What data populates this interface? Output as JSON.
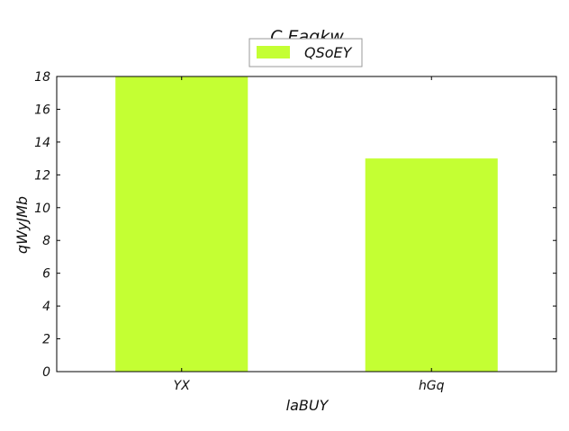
{
  "chart_data": {
    "type": "bar",
    "title": "C Eaqkw",
    "xlabel": "laBUY",
    "ylabel": "qWyJMb",
    "categories": [
      "YX",
      "hGq"
    ],
    "series": [
      {
        "name": "QSoEY",
        "values": [
          18,
          13
        ]
      }
    ],
    "ylim": [
      0,
      18
    ],
    "yticks": [
      0,
      2,
      4,
      6,
      8,
      10,
      12,
      14,
      16,
      18
    ],
    "grid": false,
    "legend_position": "top-center",
    "colors": {
      "bar": "#c4ff33",
      "axes": "#000000",
      "legend_border": "#999999"
    }
  }
}
